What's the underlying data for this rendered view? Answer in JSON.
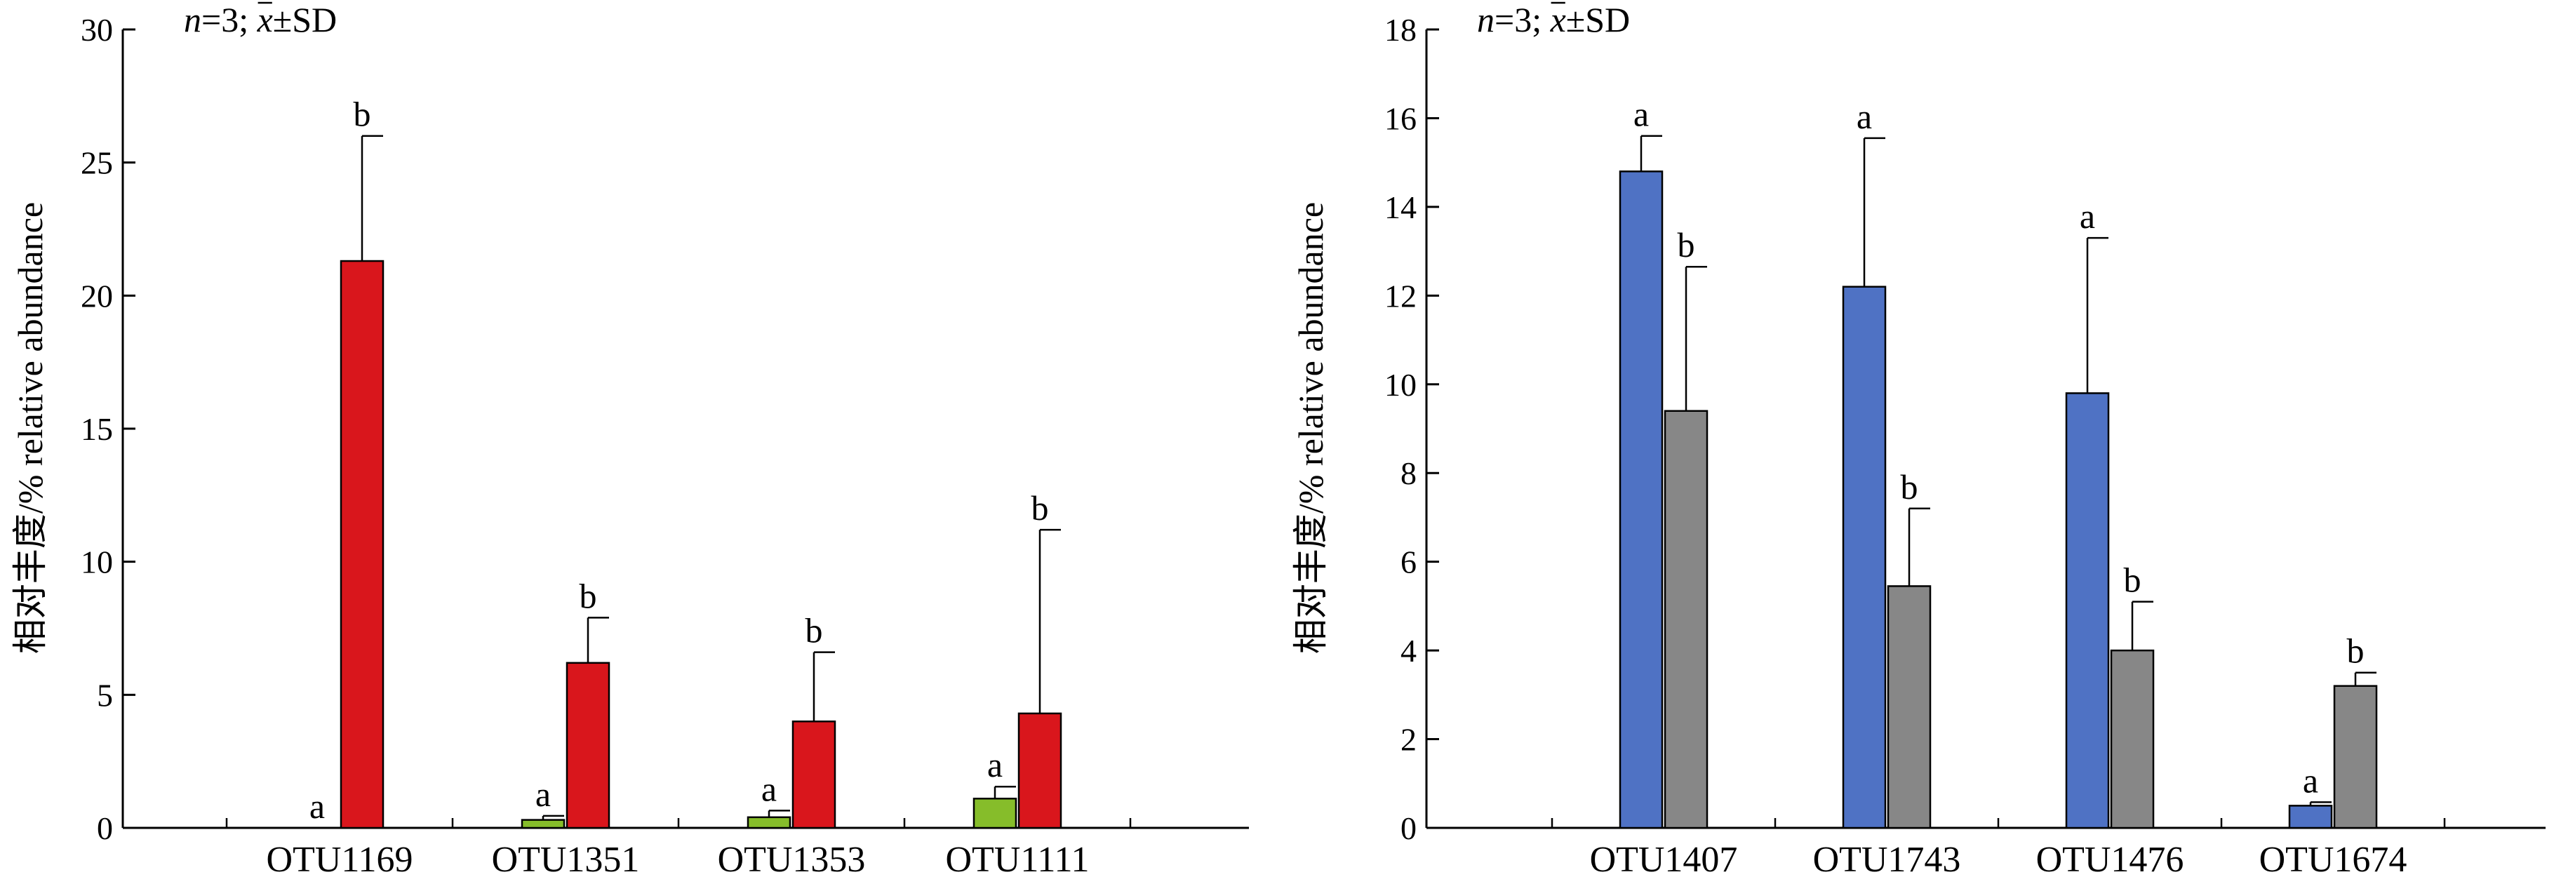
{
  "charts": [
    {
      "chart_data": {
        "type": "bar",
        "annotation": {
          "n_symbol": "n",
          "n_rest": "=3; ",
          "mean_symbol": "x",
          "sd_text": "±SD"
        },
        "ylabel": "相对丰度/% relative abundance",
        "xlabel": "",
        "ylim": [
          0,
          30
        ],
        "yticks": [
          0,
          5,
          10,
          15,
          20,
          25,
          30
        ],
        "categories": [
          "OTU1169",
          "OTU1351",
          "OTU1353",
          "OTU1111"
        ],
        "series": [
          {
            "color": "#86bd2a",
            "values": [
              0,
              0.3,
              0.4,
              1.1
            ],
            "errors": [
              0,
              0.15,
              0.25,
              0.45
            ],
            "sig": [
              "a",
              "a",
              "a",
              "a"
            ]
          },
          {
            "color": "#d9161c",
            "values": [
              21.3,
              6.2,
              4.0,
              4.3
            ],
            "errors": [
              4.7,
              1.7,
              2.6,
              6.9
            ],
            "sig": [
              "b",
              "b",
              "b",
              "b"
            ]
          }
        ]
      }
    },
    {
      "chart_data": {
        "type": "bar",
        "annotation": {
          "n_symbol": "n",
          "n_rest": "=3; ",
          "mean_symbol": "x",
          "sd_text": "±SD"
        },
        "ylabel": "相对丰度/% relative abundance",
        "xlabel": "",
        "ylim": [
          0,
          18
        ],
        "yticks": [
          0,
          2,
          4,
          6,
          8,
          10,
          12,
          14,
          16,
          18
        ],
        "categories": [
          "OTU1407",
          "OTU1743",
          "OTU1476",
          "OTU1674"
        ],
        "series": [
          {
            "color": "#4f72c4",
            "values": [
              14.8,
              12.2,
              9.8,
              0.5
            ],
            "errors": [
              0.8,
              3.35,
              3.5,
              0.08
            ],
            "sig": [
              "a",
              "a",
              "a",
              "a"
            ]
          },
          {
            "color": "#878787",
            "values": [
              9.4,
              5.45,
              4.0,
              3.2
            ],
            "errors": [
              3.25,
              1.75,
              1.1,
              0.3
            ],
            "sig": [
              "b",
              "b",
              "b",
              "b"
            ]
          }
        ]
      }
    }
  ]
}
